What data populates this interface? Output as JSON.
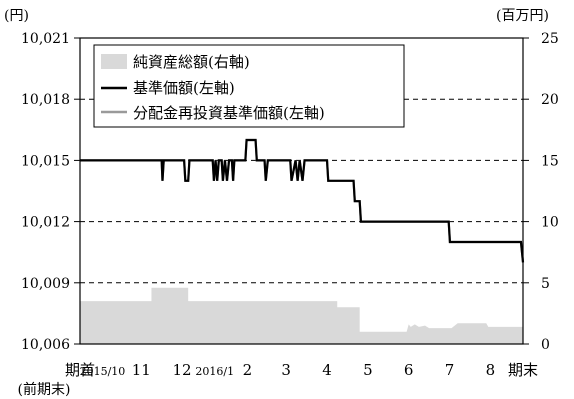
{
  "chart_data": {
    "type": "line",
    "left_axis_unit": "(円)",
    "right_axis_unit": "(百万円)",
    "left_ylim": [
      10006,
      10021
    ],
    "left_ticks": [
      "10,021",
      "10,018",
      "10,015",
      "10,012",
      "10,009",
      "10,006"
    ],
    "left_tick_values": [
      10021,
      10018,
      10015,
      10012,
      10009,
      10006
    ],
    "right_ylim": [
      0,
      25
    ],
    "right_ticks": [
      "25",
      "20",
      "15",
      "10",
      "5",
      "0"
    ],
    "right_tick_values": [
      25,
      20,
      15,
      10,
      5,
      0
    ],
    "x_ticks": [
      "期首",
      "2015/10",
      "11",
      "12",
      "2016/1",
      "2",
      "3",
      "4",
      "5",
      "6",
      "7",
      "8",
      "期末"
    ],
    "x_tick_values": [
      0,
      0.55,
      1.5,
      2.5,
      3.3,
      4.1,
      5.05,
      6.05,
      7.05,
      8.05,
      9.05,
      10.05,
      10.85
    ],
    "x_sub_label": "(前期末)",
    "x_range": [
      0,
      10.85
    ],
    "grid": "dashed horizontal",
    "legend_position": "top-left",
    "legend": [
      {
        "label": "純資産総額(右軸)",
        "kind": "area"
      },
      {
        "label": "基準価額(左軸)",
        "kind": "line"
      },
      {
        "label": "分配金再投資基準価額(左軸)",
        "kind": "line"
      }
    ],
    "colors": {
      "nav_area": "#d9d9d9",
      "price": "#000000",
      "reinvest": "#9a9a9a"
    },
    "series": [
      {
        "name": "純資産総額(右軸)",
        "axis": "right",
        "type": "area",
        "points": [
          [
            0,
            3.5
          ],
          [
            1.75,
            3.5
          ],
          [
            1.75,
            4.6
          ],
          [
            2.65,
            4.6
          ],
          [
            2.65,
            3.5
          ],
          [
            6.3,
            3.5
          ],
          [
            6.3,
            3.0
          ],
          [
            6.85,
            3.0
          ],
          [
            6.85,
            1.0
          ],
          [
            8.0,
            1.0
          ],
          [
            8.05,
            1.6
          ],
          [
            8.1,
            1.4
          ],
          [
            8.2,
            1.6
          ],
          [
            8.3,
            1.4
          ],
          [
            8.45,
            1.5
          ],
          [
            8.55,
            1.3
          ],
          [
            9.1,
            1.3
          ],
          [
            9.1,
            1.3
          ],
          [
            9.25,
            1.7
          ],
          [
            9.95,
            1.7
          ],
          [
            10.0,
            1.4
          ],
          [
            10.8,
            1.4
          ],
          [
            10.85,
            1.4
          ]
        ]
      },
      {
        "name": "基準価額(左軸)",
        "axis": "left",
        "type": "line",
        "points": [
          [
            0,
            10015
          ],
          [
            2.0,
            10015
          ],
          [
            2.02,
            10014
          ],
          [
            2.05,
            10015
          ],
          [
            2.55,
            10015
          ],
          [
            2.58,
            10014
          ],
          [
            2.65,
            10014
          ],
          [
            2.68,
            10015
          ],
          [
            3.25,
            10015
          ],
          [
            3.28,
            10014
          ],
          [
            3.32,
            10015
          ],
          [
            3.36,
            10014
          ],
          [
            3.4,
            10015
          ],
          [
            3.47,
            10015
          ],
          [
            3.5,
            10014
          ],
          [
            3.55,
            10015
          ],
          [
            3.6,
            10014
          ],
          [
            3.65,
            10015
          ],
          [
            3.72,
            10015
          ],
          [
            3.75,
            10014
          ],
          [
            3.78,
            10015
          ],
          [
            4.05,
            10015
          ],
          [
            4.08,
            10016
          ],
          [
            4.3,
            10016
          ],
          [
            4.33,
            10015
          ],
          [
            4.52,
            10015
          ],
          [
            4.55,
            10014
          ],
          [
            4.6,
            10015
          ],
          [
            5.15,
            10015
          ],
          [
            5.18,
            10014
          ],
          [
            5.28,
            10015
          ],
          [
            5.33,
            10014
          ],
          [
            5.38,
            10015
          ],
          [
            5.45,
            10014
          ],
          [
            5.5,
            10015
          ],
          [
            6.05,
            10015
          ],
          [
            6.08,
            10014
          ],
          [
            6.7,
            10014
          ],
          [
            6.73,
            10013
          ],
          [
            6.85,
            10013
          ],
          [
            6.88,
            10012
          ],
          [
            9.03,
            10012
          ],
          [
            9.06,
            10011
          ],
          [
            10.8,
            10011
          ],
          [
            10.85,
            10010
          ]
        ]
      },
      {
        "name": "分配金再投資基準価額(左軸)",
        "axis": "left",
        "type": "line",
        "points": [
          [
            0,
            10015
          ],
          [
            2.0,
            10015
          ],
          [
            2.02,
            10014
          ],
          [
            2.05,
            10015
          ],
          [
            2.55,
            10015
          ],
          [
            2.58,
            10014
          ],
          [
            2.65,
            10014
          ],
          [
            2.68,
            10015
          ],
          [
            3.25,
            10015
          ],
          [
            3.28,
            10014
          ],
          [
            3.32,
            10015
          ],
          [
            3.36,
            10014
          ],
          [
            3.4,
            10015
          ],
          [
            3.47,
            10015
          ],
          [
            3.5,
            10014
          ],
          [
            3.55,
            10015
          ],
          [
            3.6,
            10014
          ],
          [
            3.65,
            10015
          ],
          [
            3.72,
            10015
          ],
          [
            3.75,
            10014
          ],
          [
            3.78,
            10015
          ],
          [
            4.05,
            10015
          ],
          [
            4.08,
            10016
          ],
          [
            4.3,
            10016
          ],
          [
            4.33,
            10015
          ],
          [
            4.52,
            10015
          ],
          [
            4.55,
            10014
          ],
          [
            4.6,
            10015
          ],
          [
            5.15,
            10015
          ],
          [
            5.18,
            10014
          ],
          [
            5.28,
            10015
          ],
          [
            5.33,
            10014
          ],
          [
            5.38,
            10015
          ],
          [
            5.45,
            10014
          ],
          [
            5.5,
            10015
          ],
          [
            6.05,
            10015
          ],
          [
            6.08,
            10014
          ],
          [
            6.7,
            10014
          ],
          [
            6.73,
            10013
          ],
          [
            6.85,
            10013
          ],
          [
            6.88,
            10012
          ],
          [
            9.03,
            10012
          ],
          [
            9.06,
            10011
          ],
          [
            10.8,
            10011
          ],
          [
            10.85,
            10010
          ]
        ]
      }
    ]
  }
}
